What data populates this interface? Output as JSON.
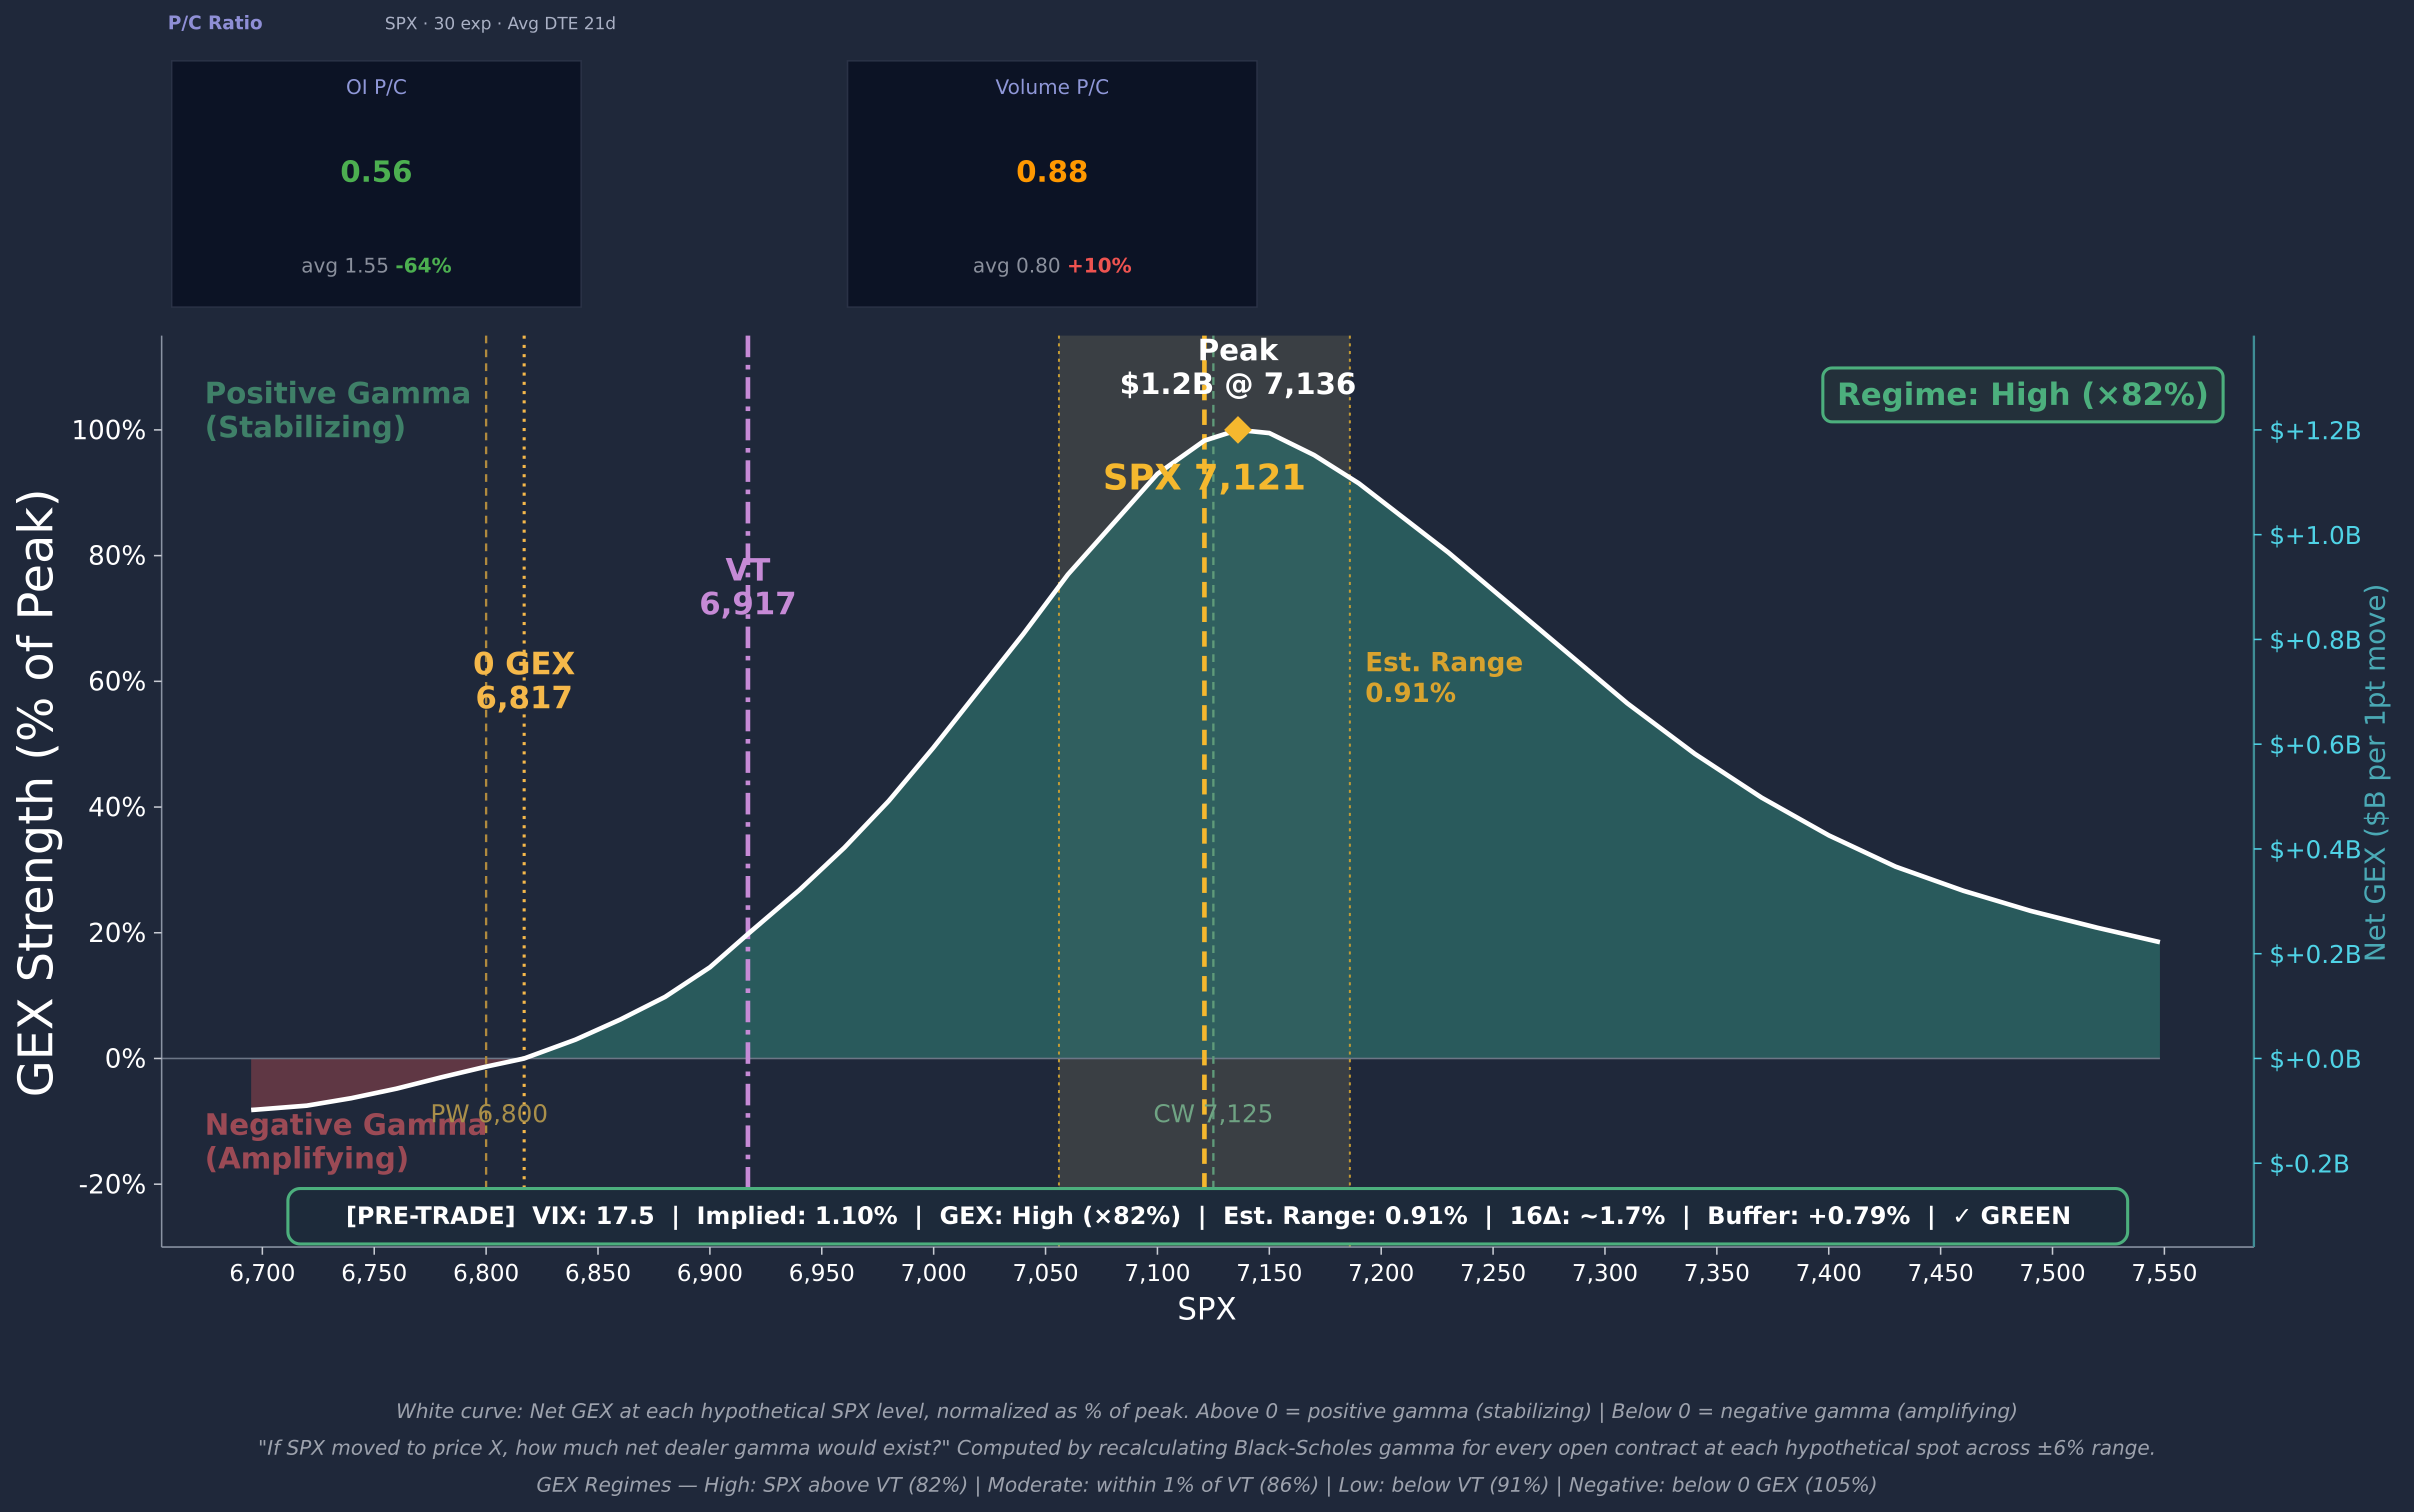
{
  "pc_panel": {
    "title": "P/C Ratio",
    "subtitle": "SPX · 30 exp · Avg DTE 21d",
    "cards": [
      {
        "label": "OI P/C",
        "value": "0.56",
        "value_color": "#4caf50",
        "avg_text": "avg 1.55",
        "delta": "-64%",
        "delta_color": "#4caf50"
      },
      {
        "label": "Volume P/C",
        "value": "0.88",
        "value_color": "#ff9800",
        "avg_text": "avg 0.80",
        "delta": "+10%",
        "delta_color": "#ef5350"
      }
    ]
  },
  "colors": {
    "background": "#1f283a",
    "positive_fill": "#2e6b68",
    "negative_fill": "#6b3a47",
    "curve": "#ffffff",
    "spx": "#f5b82e",
    "vt": "#c68ad6",
    "zero_gex": "#f5b84a",
    "right_axis": "#4fd3e6",
    "regime": "#4caf7d"
  },
  "chart_data": {
    "type": "area",
    "x_label": "SPX",
    "y_label": "GEX Strength (% of Peak)",
    "y2_label": "Net GEX ($B per 1pt move)",
    "xlim": [
      6655,
      7590
    ],
    "ylim": [
      -30,
      115
    ],
    "x_ticks": [
      6700,
      6750,
      6800,
      6850,
      6900,
      6950,
      7000,
      7050,
      7100,
      7150,
      7200,
      7250,
      7300,
      7350,
      7400,
      7450,
      7500,
      7550
    ],
    "x_tick_labels": [
      "6,700",
      "6,750",
      "6,800",
      "6,850",
      "6,900",
      "6,950",
      "7,000",
      "7,050",
      "7,100",
      "7,150",
      "7,200",
      "7,250",
      "7,300",
      "7,350",
      "7,400",
      "7,450",
      "7,500",
      "7,550"
    ],
    "y_ticks": [
      -20,
      0,
      20,
      40,
      60,
      80,
      100
    ],
    "y_tick_labels": [
      "-20%",
      "0%",
      "20%",
      "40%",
      "60%",
      "80%",
      "100%"
    ],
    "y2_ticks": [
      -0.2,
      0.0,
      0.2,
      0.4,
      0.6,
      0.8,
      1.0,
      1.2
    ],
    "y2_tick_labels": [
      "$-0.2B",
      "$+0.0B",
      "$+0.2B",
      "$+0.4B",
      "$+0.6B",
      "$+0.8B",
      "$+1.0B",
      "$+1.2B"
    ],
    "y2_range": [
      -0.36,
      1.38
    ],
    "grid": false,
    "series": [
      {
        "x": [
          6695,
          6720,
          6740,
          6760,
          6780,
          6800,
          6817,
          6840,
          6860,
          6880,
          6900,
          6917,
          6940,
          6960,
          6980,
          7000,
          7020,
          7040,
          7060,
          7080,
          7100,
          7121,
          7136,
          7150,
          7170,
          7190,
          7210,
          7230,
          7250,
          7270,
          7290,
          7310,
          7340,
          7370,
          7400,
          7430,
          7460,
          7490,
          7520,
          7548
        ],
        "y": [
          -8.2,
          -7.5,
          -6.3,
          -4.8,
          -3.0,
          -1.3,
          0,
          3.0,
          6.2,
          9.8,
          14.5,
          19.8,
          26.8,
          33.5,
          41.0,
          49.5,
          58.5,
          67.5,
          77.0,
          85.0,
          93.0,
          98.3,
          100.0,
          99.5,
          96.0,
          91.5,
          86.0,
          80.5,
          74.5,
          68.5,
          62.5,
          56.5,
          48.5,
          41.5,
          35.5,
          30.5,
          26.7,
          23.5,
          20.8,
          18.5
        ]
      }
    ],
    "spx": 7121,
    "spx_label": "SPX 7,121",
    "peak": {
      "x": 7136,
      "y": 100,
      "label_line1": "Peak",
      "label_line2": "$1.2B @ 7,136"
    },
    "vt": {
      "x": 6917,
      "label_line1": "VT",
      "label_line2": "6,917"
    },
    "zero_gex": {
      "x": 6817,
      "label_line1": "0 GEX",
      "label_line2": "6,817"
    },
    "put_wall": {
      "x": 6800,
      "label": "PW 6,800"
    },
    "call_wall": {
      "x": 7125,
      "label": "CW 7,125"
    },
    "est_range": {
      "lo": 7056,
      "hi": 7186,
      "label_line1": "Est. Range",
      "label_line2": "0.91%"
    },
    "annotations": {
      "positive_line1": "Positive Gamma",
      "positive_line2": "(Stabilizing)",
      "negative_line1": "Negative Gamma",
      "negative_line2": "(Amplifying)",
      "regime": "Regime: High (×82%)",
      "pretrade": "[PRE-TRADE]  VIX: 17.5  |  Implied: 1.10%  |  GEX: High (×82%)  |  Est. Range: 0.91%  |  16Δ: ~1.7%  |  Buffer: +0.79%  |  ✓ GREEN"
    }
  },
  "footer": {
    "line1": "White curve: Net GEX at each hypothetical SPX level, normalized as % of peak.  Above 0 = positive gamma (stabilizing)  |  Below 0 = negative gamma (amplifying)",
    "line2": "\"If SPX moved to price X, how much net dealer gamma would exist?\" Computed by recalculating Black-Scholes gamma for every open contract at each hypothetical spot across ±6% range.",
    "line3": "GEX Regimes — High: SPX above VT (82%)  |  Moderate: within 1% of VT (86%)  |  Low: below VT (91%)  |  Negative: below 0 GEX (105%)"
  }
}
